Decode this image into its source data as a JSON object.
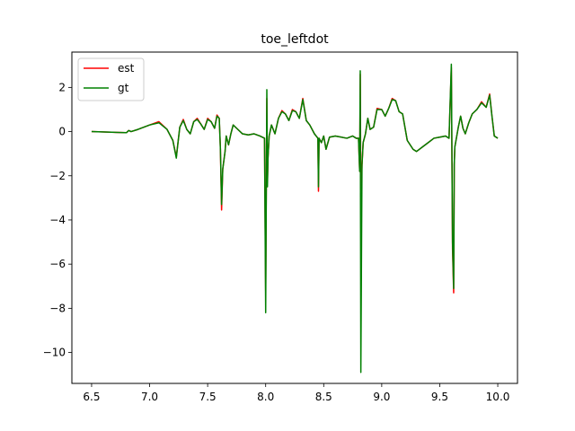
{
  "chart_data": {
    "type": "line",
    "title": "toe_leftdot",
    "xlabel": "",
    "ylabel": "",
    "xlim": [
      6.33,
      10.17
    ],
    "ylim": [
      -11.4,
      3.6
    ],
    "xticks": [
      6.5,
      7.0,
      7.5,
      8.0,
      8.5,
      9.0,
      9.5,
      10.0
    ],
    "xtick_labels": [
      "6.5",
      "7.0",
      "7.5",
      "8.0",
      "8.5",
      "9.0",
      "9.5",
      "10.0"
    ],
    "yticks": [
      2,
      0,
      -2,
      -4,
      -6,
      -8,
      -10
    ],
    "ytick_labels": [
      "2",
      "0",
      "−2",
      "−4",
      "−6",
      "−8",
      "−10"
    ],
    "grid": false,
    "legend_position": "upper-left",
    "series": [
      {
        "name": "est",
        "color": "#ff0000",
        "x": [
          6.5,
          6.8,
          6.82,
          6.84,
          6.9,
          7.0,
          7.08,
          7.15,
          7.2,
          7.23,
          7.24,
          7.26,
          7.29,
          7.32,
          7.35,
          7.38,
          7.41,
          7.44,
          7.47,
          7.5,
          7.53,
          7.56,
          7.58,
          7.6,
          7.61,
          7.62,
          7.63,
          7.65,
          7.66,
          7.68,
          7.7,
          7.72,
          7.75,
          7.8,
          7.85,
          7.9,
          7.95,
          7.99,
          8.0,
          8.01,
          8.015,
          8.02,
          8.03,
          8.05,
          8.08,
          8.11,
          8.14,
          8.17,
          8.2,
          8.23,
          8.26,
          8.29,
          8.32,
          8.35,
          8.38,
          8.42,
          8.45,
          8.455,
          8.46,
          8.48,
          8.5,
          8.52,
          8.55,
          8.6,
          8.7,
          8.75,
          8.78,
          8.8,
          8.81,
          8.815,
          8.82,
          8.83,
          8.84,
          8.86,
          8.88,
          8.9,
          8.93,
          8.96,
          9.0,
          9.03,
          9.06,
          9.09,
          9.12,
          9.15,
          9.18,
          9.22,
          9.27,
          9.3,
          9.35,
          9.4,
          9.45,
          9.5,
          9.55,
          9.58,
          9.6,
          9.61,
          9.62,
          9.625,
          9.63,
          9.64,
          9.66,
          9.68,
          9.7,
          9.72,
          9.75,
          9.78,
          9.82,
          9.86,
          9.9,
          9.93,
          9.95,
          9.97,
          10.0
        ],
        "y": [
          0.0,
          -0.05,
          0.05,
          0.0,
          0.1,
          0.3,
          0.45,
          0.1,
          -0.4,
          -1.15,
          -0.7,
          0.2,
          0.55,
          0.1,
          -0.1,
          0.45,
          0.6,
          0.35,
          0.1,
          0.6,
          0.45,
          0.15,
          0.75,
          0.6,
          -0.8,
          -3.55,
          -1.7,
          -0.9,
          -0.2,
          -0.6,
          -0.1,
          0.3,
          0.15,
          -0.1,
          -0.15,
          -0.1,
          -0.2,
          -0.3,
          -7.2,
          1.5,
          -2.3,
          -1.2,
          -0.2,
          0.3,
          -0.1,
          0.6,
          0.95,
          0.8,
          0.5,
          1.0,
          0.9,
          0.6,
          1.5,
          0.5,
          0.3,
          -0.1,
          -0.3,
          -2.7,
          -0.3,
          -0.5,
          -0.2,
          -0.8,
          -0.25,
          -0.2,
          -0.3,
          -0.2,
          -0.3,
          -0.3,
          -1.8,
          2.6,
          -3.1,
          -1.5,
          -0.5,
          -0.1,
          0.6,
          0.1,
          0.2,
          1.05,
          1.0,
          0.7,
          1.05,
          1.5,
          1.4,
          0.9,
          0.8,
          -0.4,
          -0.8,
          -0.9,
          -0.7,
          -0.5,
          -0.3,
          -0.25,
          -0.2,
          -0.3,
          2.9,
          -5.3,
          -7.3,
          -1.5,
          -0.7,
          -0.4,
          0.2,
          0.7,
          0.15,
          -0.1,
          0.4,
          0.8,
          1.0,
          1.35,
          1.1,
          1.7,
          0.7,
          -0.2,
          -0.3
        ]
      },
      {
        "name": "gt",
        "color": "#008000",
        "x": [
          6.5,
          6.8,
          6.82,
          6.84,
          6.9,
          7.0,
          7.08,
          7.15,
          7.2,
          7.23,
          7.24,
          7.26,
          7.29,
          7.32,
          7.35,
          7.38,
          7.41,
          7.44,
          7.47,
          7.5,
          7.53,
          7.56,
          7.58,
          7.6,
          7.61,
          7.62,
          7.63,
          7.65,
          7.66,
          7.68,
          7.7,
          7.72,
          7.75,
          7.8,
          7.85,
          7.9,
          7.95,
          7.99,
          8.0,
          8.01,
          8.015,
          8.02,
          8.03,
          8.05,
          8.08,
          8.11,
          8.14,
          8.17,
          8.2,
          8.23,
          8.26,
          8.29,
          8.32,
          8.35,
          8.38,
          8.42,
          8.45,
          8.455,
          8.46,
          8.48,
          8.5,
          8.52,
          8.55,
          8.6,
          8.7,
          8.75,
          8.78,
          8.8,
          8.81,
          8.815,
          8.82,
          8.83,
          8.84,
          8.86,
          8.88,
          8.9,
          8.93,
          8.96,
          9.0,
          9.03,
          9.06,
          9.09,
          9.12,
          9.15,
          9.18,
          9.22,
          9.27,
          9.3,
          9.35,
          9.4,
          9.45,
          9.5,
          9.55,
          9.58,
          9.6,
          9.61,
          9.62,
          9.625,
          9.63,
          9.64,
          9.66,
          9.68,
          9.7,
          9.72,
          9.75,
          9.78,
          9.82,
          9.86,
          9.9,
          9.93,
          9.95,
          9.97,
          10.0
        ],
        "y": [
          0.0,
          -0.05,
          0.05,
          0.0,
          0.1,
          0.3,
          0.4,
          0.1,
          -0.4,
          -1.2,
          -0.7,
          0.2,
          0.5,
          0.1,
          -0.1,
          0.45,
          0.55,
          0.35,
          0.1,
          0.55,
          0.45,
          0.15,
          0.7,
          0.6,
          -0.8,
          -3.3,
          -1.7,
          -0.9,
          -0.2,
          -0.6,
          -0.1,
          0.3,
          0.15,
          -0.1,
          -0.15,
          -0.1,
          -0.2,
          -0.3,
          -8.2,
          1.9,
          -2.5,
          -1.2,
          -0.2,
          0.3,
          -0.1,
          0.6,
          0.9,
          0.8,
          0.5,
          0.95,
          0.9,
          0.6,
          1.45,
          0.5,
          0.3,
          -0.1,
          -0.3,
          -2.5,
          -0.3,
          -0.5,
          -0.2,
          -0.8,
          -0.25,
          -0.2,
          -0.3,
          -0.2,
          -0.3,
          -0.3,
          -1.8,
          2.75,
          -10.9,
          -1.5,
          -0.5,
          -0.1,
          0.6,
          0.1,
          0.2,
          1.0,
          1.0,
          0.7,
          1.05,
          1.45,
          1.4,
          0.9,
          0.8,
          -0.4,
          -0.8,
          -0.9,
          -0.7,
          -0.5,
          -0.3,
          -0.25,
          -0.2,
          -0.3,
          3.05,
          -5.0,
          -7.1,
          -1.5,
          -0.7,
          -0.4,
          0.2,
          0.7,
          0.15,
          -0.1,
          0.4,
          0.8,
          1.0,
          1.3,
          1.1,
          1.65,
          0.7,
          -0.2,
          -0.3
        ]
      }
    ]
  }
}
